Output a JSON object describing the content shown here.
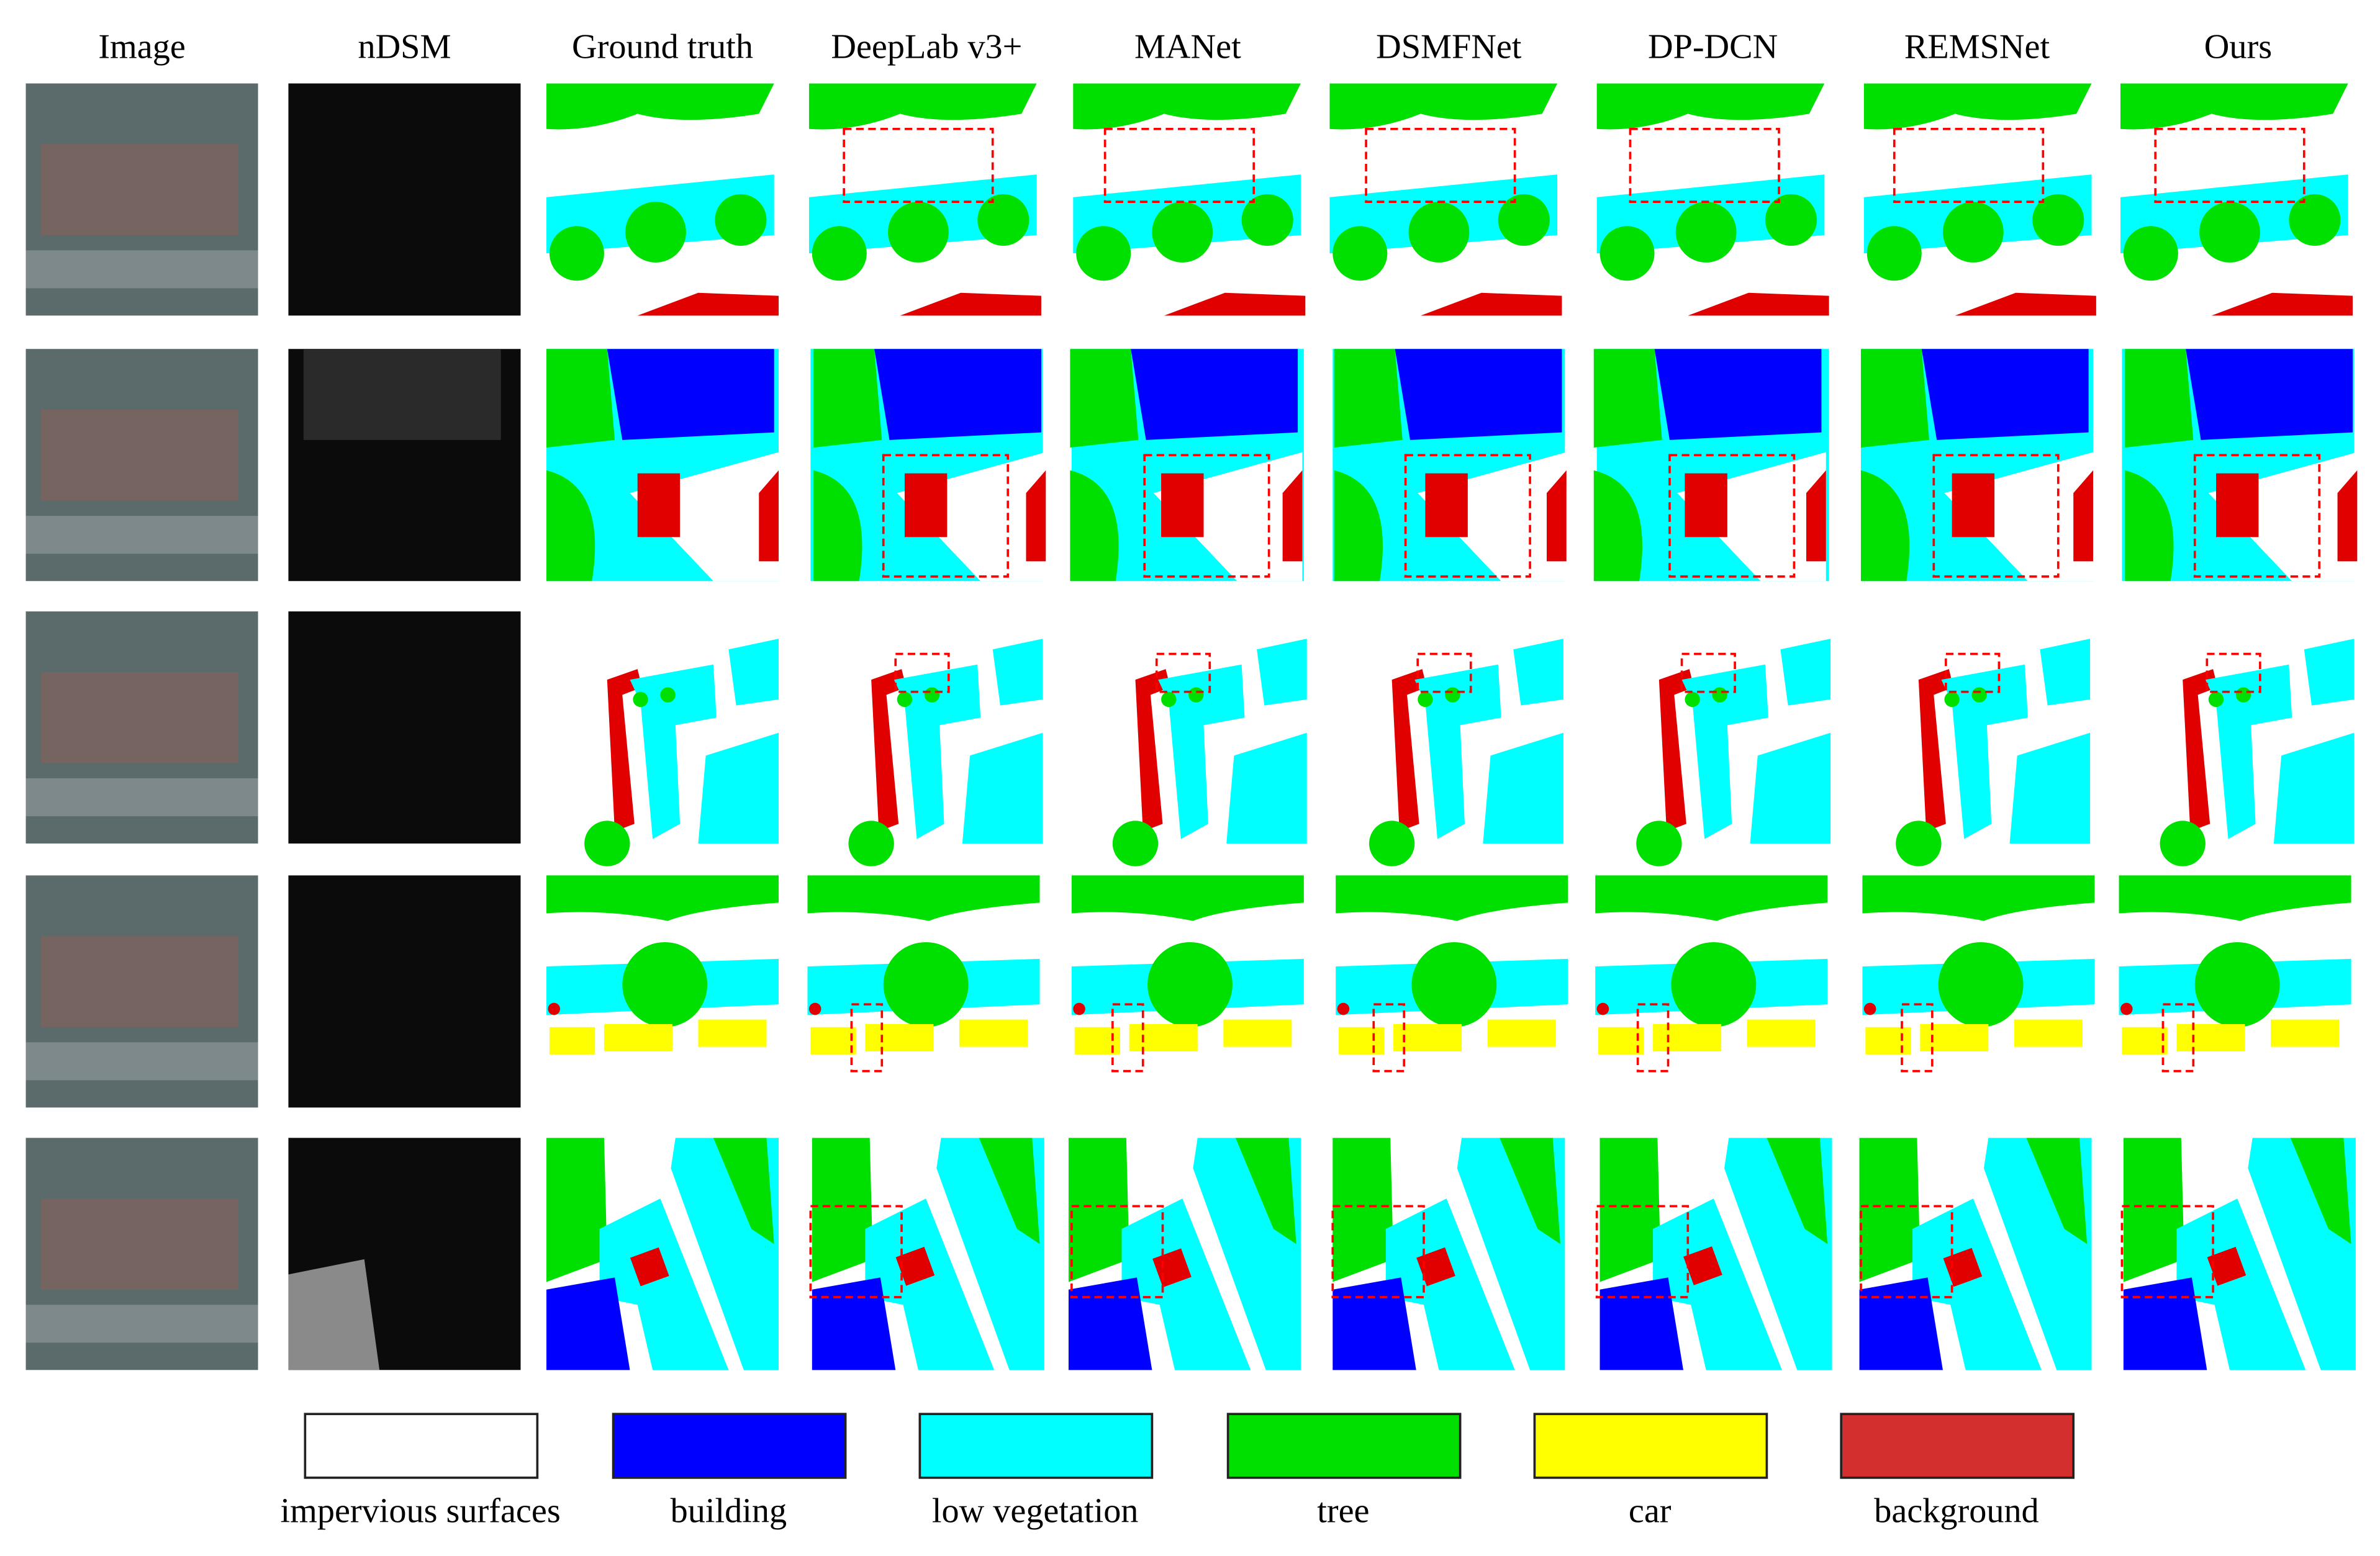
{
  "columns": [
    "Image",
    "nDSM",
    "Ground truth",
    "DeepLab v3+",
    "MANet",
    "DSMFNet",
    "DP-DCN",
    "REMSNet",
    "Ours"
  ],
  "legend": [
    {
      "label": "impervious surfaces",
      "color": "#ffffff"
    },
    {
      "label": "building",
      "color": "#0000ff"
    },
    {
      "label": "low vegetation",
      "color": "#00ffff"
    },
    {
      "label": "tree",
      "color": "#00e000"
    },
    {
      "label": "car",
      "color": "#ffff00"
    },
    {
      "label": "background",
      "color": "#d32f2f"
    }
  ]
}
